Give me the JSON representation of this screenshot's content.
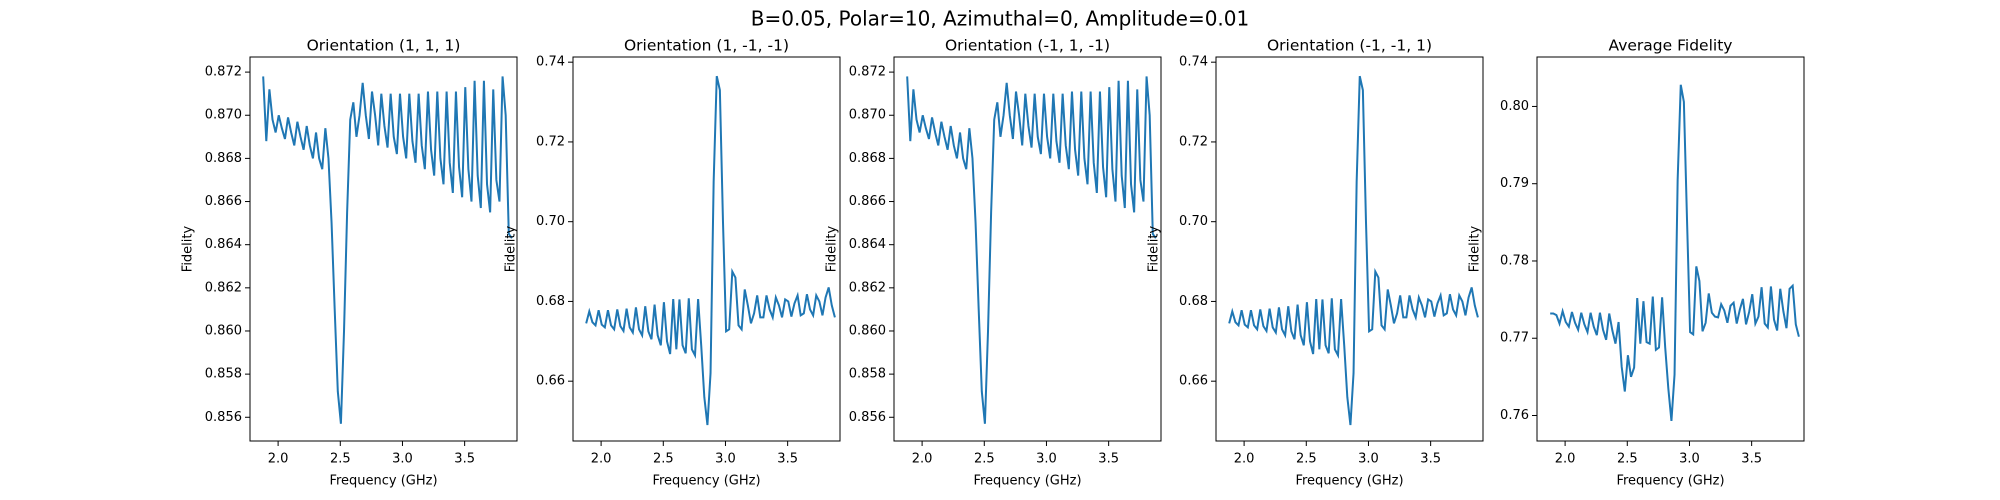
{
  "title": "B=0.05, Polar=10, Azimuthal=0, Amplitude=0.01",
  "chart_data": [
    {
      "type": "line",
      "title": "Orientation (1, 1, 1)",
      "x_label": "Frequency (GHz)",
      "y_label": "Fidelity",
      "x": [
        1.88,
        1.905,
        1.93,
        1.955,
        1.98,
        2.005,
        2.03,
        2.055,
        2.08,
        2.105,
        2.13,
        2.155,
        2.18,
        2.205,
        2.23,
        2.255,
        2.28,
        2.305,
        2.33,
        2.355,
        2.38,
        2.405,
        2.43,
        2.455,
        2.48,
        2.505,
        2.53,
        2.555,
        2.58,
        2.605,
        2.63,
        2.655,
        2.68,
        2.705,
        2.73,
        2.755,
        2.78,
        2.805,
        2.83,
        2.855,
        2.88,
        2.905,
        2.93,
        2.955,
        2.98,
        3.005,
        3.03,
        3.055,
        3.08,
        3.105,
        3.13,
        3.155,
        3.18,
        3.205,
        3.23,
        3.255,
        3.28,
        3.305,
        3.33,
        3.355,
        3.38,
        3.405,
        3.43,
        3.455,
        3.48,
        3.505,
        3.53,
        3.555,
        3.58,
        3.605,
        3.63,
        3.655,
        3.68,
        3.705,
        3.73,
        3.755,
        3.78,
        3.805,
        3.83,
        3.855,
        3.88
      ],
      "series": [
        {
          "color": "#1f77b4",
          "values": [
            0.8718,
            0.8688,
            0.8712,
            0.8698,
            0.8692,
            0.87,
            0.8694,
            0.8689,
            0.8699,
            0.8692,
            0.8686,
            0.8697,
            0.869,
            0.8684,
            0.8695,
            0.8686,
            0.868,
            0.8692,
            0.868,
            0.8675,
            0.8694,
            0.868,
            0.865,
            0.861,
            0.8572,
            0.8557,
            0.86,
            0.8655,
            0.8698,
            0.8706,
            0.869,
            0.87,
            0.8715,
            0.87,
            0.8689,
            0.8711,
            0.87,
            0.8686,
            0.871,
            0.8695,
            0.8685,
            0.871,
            0.869,
            0.8682,
            0.871,
            0.869,
            0.868,
            0.871,
            0.8688,
            0.8678,
            0.871,
            0.8686,
            0.8675,
            0.8711,
            0.8684,
            0.8672,
            0.8711,
            0.868,
            0.8668,
            0.8711,
            0.8678,
            0.8664,
            0.8711,
            0.8676,
            0.8662,
            0.8713,
            0.8675,
            0.866,
            0.8716,
            0.8672,
            0.8657,
            0.8716,
            0.8668,
            0.8655,
            0.8712,
            0.867,
            0.866,
            0.8718,
            0.87,
            0.8645,
            0.8643
          ]
        }
      ],
      "xlim": [
        1.774,
        3.921
      ],
      "xticks": [
        {
          "value": 2.0,
          "label": "2.0"
        },
        2.5,
        {
          "value": 3.0,
          "label": "3.0"
        },
        3.5
      ],
      "ylim": [
        0.8549,
        0.8727
      ],
      "yticks": [
        0.856,
        0.858,
        {
          "value": 0.86,
          "label": "0.860"
        },
        0.862,
        0.864,
        0.866,
        0.868,
        {
          "value": 0.87,
          "label": "0.870"
        },
        0.872
      ]
    },
    {
      "type": "line",
      "title": "Orientation (1, -1, -1)",
      "x_label": "Frequency (GHz)",
      "y_label": "Fidelity",
      "x": [
        1.88,
        1.905,
        1.93,
        1.955,
        1.98,
        2.005,
        2.03,
        2.055,
        2.08,
        2.105,
        2.13,
        2.155,
        2.18,
        2.205,
        2.23,
        2.255,
        2.28,
        2.305,
        2.33,
        2.355,
        2.38,
        2.405,
        2.43,
        2.455,
        2.48,
        2.505,
        2.53,
        2.555,
        2.58,
        2.605,
        2.63,
        2.655,
        2.68,
        2.705,
        2.73,
        2.755,
        2.78,
        2.805,
        2.83,
        2.855,
        2.88,
        2.905,
        2.93,
        2.955,
        2.98,
        3.005,
        3.03,
        3.055,
        3.08,
        3.105,
        3.13,
        3.155,
        3.18,
        3.205,
        3.23,
        3.255,
        3.28,
        3.305,
        3.33,
        3.355,
        3.38,
        3.405,
        3.43,
        3.455,
        3.48,
        3.505,
        3.53,
        3.555,
        3.58,
        3.605,
        3.63,
        3.655,
        3.68,
        3.705,
        3.73,
        3.755,
        3.78,
        3.805,
        3.83,
        3.855,
        3.88
      ],
      "series": [
        {
          "color": "#1f77b4",
          "values": [
            0.6745,
            0.6775,
            0.6748,
            0.674,
            0.6778,
            0.6742,
            0.6735,
            0.6778,
            0.674,
            0.673,
            0.678,
            0.6738,
            0.6726,
            0.6782,
            0.6735,
            0.6722,
            0.6785,
            0.673,
            0.6715,
            0.6788,
            0.6725,
            0.6705,
            0.6792,
            0.6715,
            0.669,
            0.6798,
            0.67,
            0.6668,
            0.6806,
            0.668,
            0.6805,
            0.669,
            0.667,
            0.6808,
            0.668,
            0.6665,
            0.6806,
            0.669,
            0.656,
            0.649,
            0.662,
            0.71,
            0.7365,
            0.733,
            0.7,
            0.6725,
            0.673,
            0.6875,
            0.686,
            0.674,
            0.673,
            0.683,
            0.679,
            0.6745,
            0.677,
            0.6815,
            0.676,
            0.676,
            0.6815,
            0.678,
            0.676,
            0.681,
            0.679,
            0.676,
            0.6805,
            0.68,
            0.6762,
            0.6795,
            0.6815,
            0.6765,
            0.677,
            0.6818,
            0.678,
            0.6765,
            0.6815,
            0.68,
            0.6765,
            0.681,
            0.6835,
            0.679,
            0.676
          ]
        }
      ],
      "xlim": [
        1.774,
        3.921
      ],
      "xticks": [
        {
          "value": 2.0,
          "label": "2.0"
        },
        2.5,
        {
          "value": 3.0,
          "label": "3.0"
        },
        3.5
      ],
      "ylim": [
        0.645,
        0.7413
      ],
      "yticks": [
        0.66,
        0.68,
        {
          "value": 0.7,
          "label": "0.70"
        },
        0.72,
        0.74
      ]
    },
    {
      "type": "line",
      "title": "Orientation (-1, 1, -1)",
      "x_label": "Frequency (GHz)",
      "y_label": "Fidelity",
      "x": [
        1.88,
        1.905,
        1.93,
        1.955,
        1.98,
        2.005,
        2.03,
        2.055,
        2.08,
        2.105,
        2.13,
        2.155,
        2.18,
        2.205,
        2.23,
        2.255,
        2.28,
        2.305,
        2.33,
        2.355,
        2.38,
        2.405,
        2.43,
        2.455,
        2.48,
        2.505,
        2.53,
        2.555,
        2.58,
        2.605,
        2.63,
        2.655,
        2.68,
        2.705,
        2.73,
        2.755,
        2.78,
        2.805,
        2.83,
        2.855,
        2.88,
        2.905,
        2.93,
        2.955,
        2.98,
        3.005,
        3.03,
        3.055,
        3.08,
        3.105,
        3.13,
        3.155,
        3.18,
        3.205,
        3.23,
        3.255,
        3.28,
        3.305,
        3.33,
        3.355,
        3.38,
        3.405,
        3.43,
        3.455,
        3.48,
        3.505,
        3.53,
        3.555,
        3.58,
        3.605,
        3.63,
        3.655,
        3.68,
        3.705,
        3.73,
        3.755,
        3.78,
        3.805,
        3.83,
        3.855,
        3.88
      ],
      "series": [
        {
          "color": "#1f77b4",
          "values": [
            0.8718,
            0.8688,
            0.8712,
            0.8698,
            0.8692,
            0.87,
            0.8694,
            0.8689,
            0.8699,
            0.8692,
            0.8686,
            0.8697,
            0.869,
            0.8684,
            0.8695,
            0.8686,
            0.868,
            0.8692,
            0.868,
            0.8675,
            0.8694,
            0.868,
            0.865,
            0.861,
            0.8572,
            0.8557,
            0.86,
            0.8655,
            0.8698,
            0.8706,
            0.869,
            0.87,
            0.8715,
            0.87,
            0.8689,
            0.8711,
            0.87,
            0.8686,
            0.871,
            0.8695,
            0.8685,
            0.871,
            0.869,
            0.8682,
            0.871,
            0.869,
            0.868,
            0.871,
            0.8688,
            0.8678,
            0.871,
            0.8686,
            0.8675,
            0.8711,
            0.8684,
            0.8672,
            0.8711,
            0.868,
            0.8668,
            0.8711,
            0.8678,
            0.8664,
            0.8711,
            0.8676,
            0.8662,
            0.8713,
            0.8675,
            0.866,
            0.8716,
            0.8672,
            0.8657,
            0.8716,
            0.8668,
            0.8655,
            0.8712,
            0.867,
            0.866,
            0.8718,
            0.87,
            0.8645,
            0.8643
          ]
        }
      ],
      "xlim": [
        1.774,
        3.921
      ],
      "xticks": [
        {
          "value": 2.0,
          "label": "2.0"
        },
        2.5,
        {
          "value": 3.0,
          "label": "3.0"
        },
        3.5
      ],
      "ylim": [
        0.8549,
        0.8727
      ],
      "yticks": [
        0.856,
        0.858,
        {
          "value": 0.86,
          "label": "0.860"
        },
        0.862,
        0.864,
        0.866,
        0.868,
        {
          "value": 0.87,
          "label": "0.870"
        },
        0.872
      ]
    },
    {
      "type": "line",
      "title": "Orientation (-1, -1, 1)",
      "x_label": "Frequency (GHz)",
      "y_label": "Fidelity",
      "x": [
        1.88,
        1.905,
        1.93,
        1.955,
        1.98,
        2.005,
        2.03,
        2.055,
        2.08,
        2.105,
        2.13,
        2.155,
        2.18,
        2.205,
        2.23,
        2.255,
        2.28,
        2.305,
        2.33,
        2.355,
        2.38,
        2.405,
        2.43,
        2.455,
        2.48,
        2.505,
        2.53,
        2.555,
        2.58,
        2.605,
        2.63,
        2.655,
        2.68,
        2.705,
        2.73,
        2.755,
        2.78,
        2.805,
        2.83,
        2.855,
        2.88,
        2.905,
        2.93,
        2.955,
        2.98,
        3.005,
        3.03,
        3.055,
        3.08,
        3.105,
        3.13,
        3.155,
        3.18,
        3.205,
        3.23,
        3.255,
        3.28,
        3.305,
        3.33,
        3.355,
        3.38,
        3.405,
        3.43,
        3.455,
        3.48,
        3.505,
        3.53,
        3.555,
        3.58,
        3.605,
        3.63,
        3.655,
        3.68,
        3.705,
        3.73,
        3.755,
        3.78,
        3.805,
        3.83,
        3.855,
        3.88
      ],
      "series": [
        {
          "color": "#1f77b4",
          "values": [
            0.6745,
            0.6775,
            0.6748,
            0.674,
            0.6778,
            0.6742,
            0.6735,
            0.6778,
            0.674,
            0.673,
            0.678,
            0.6738,
            0.6726,
            0.6782,
            0.6735,
            0.6722,
            0.6785,
            0.673,
            0.6715,
            0.6788,
            0.6725,
            0.6705,
            0.6792,
            0.6715,
            0.669,
            0.6798,
            0.67,
            0.6668,
            0.6806,
            0.668,
            0.6805,
            0.669,
            0.667,
            0.6808,
            0.668,
            0.6665,
            0.6806,
            0.669,
            0.656,
            0.649,
            0.662,
            0.71,
            0.7365,
            0.733,
            0.7,
            0.6725,
            0.673,
            0.6875,
            0.686,
            0.674,
            0.673,
            0.683,
            0.679,
            0.6745,
            0.677,
            0.6815,
            0.676,
            0.676,
            0.6815,
            0.678,
            0.676,
            0.681,
            0.679,
            0.676,
            0.6805,
            0.68,
            0.6762,
            0.6795,
            0.6815,
            0.6765,
            0.677,
            0.6818,
            0.678,
            0.6765,
            0.6815,
            0.68,
            0.6765,
            0.681,
            0.6835,
            0.679,
            0.676
          ]
        }
      ],
      "xlim": [
        1.774,
        3.921
      ],
      "xticks": [
        {
          "value": 2.0,
          "label": "2.0"
        },
        2.5,
        {
          "value": 3.0,
          "label": "3.0"
        },
        3.5
      ],
      "ylim": [
        0.645,
        0.7413
      ],
      "yticks": [
        0.66,
        0.68,
        {
          "value": 0.7,
          "label": "0.70"
        },
        0.72,
        0.74
      ]
    },
    {
      "type": "line",
      "title": "Average Fidelity",
      "x_label": "Frequency (GHz)",
      "y_label": "Fidelity",
      "x": [
        1.88,
        1.905,
        1.93,
        1.955,
        1.98,
        2.005,
        2.03,
        2.055,
        2.08,
        2.105,
        2.13,
        2.155,
        2.18,
        2.205,
        2.23,
        2.255,
        2.28,
        2.305,
        2.33,
        2.355,
        2.38,
        2.405,
        2.43,
        2.455,
        2.48,
        2.505,
        2.53,
        2.555,
        2.58,
        2.605,
        2.63,
        2.655,
        2.68,
        2.705,
        2.73,
        2.755,
        2.78,
        2.805,
        2.83,
        2.855,
        2.88,
        2.905,
        2.93,
        2.955,
        2.98,
        3.005,
        3.03,
        3.055,
        3.08,
        3.105,
        3.13,
        3.155,
        3.18,
        3.205,
        3.23,
        3.255,
        3.28,
        3.305,
        3.33,
        3.355,
        3.38,
        3.405,
        3.43,
        3.455,
        3.48,
        3.505,
        3.53,
        3.555,
        3.58,
        3.605,
        3.63,
        3.655,
        3.68,
        3.705,
        3.73,
        3.755,
        3.78,
        3.805,
        3.83,
        3.855,
        3.88
      ],
      "series": [
        {
          "color": "#1f77b4",
          "values": [
            0.7732,
            0.7732,
            0.773,
            0.7719,
            0.7735,
            0.7721,
            0.7715,
            0.7734,
            0.772,
            0.7711,
            0.7733,
            0.7718,
            0.7708,
            0.7733,
            0.7715,
            0.7704,
            0.7733,
            0.7711,
            0.7698,
            0.7732,
            0.771,
            0.7693,
            0.7721,
            0.7663,
            0.7631,
            0.7678,
            0.765,
            0.7662,
            0.7752,
            0.7693,
            0.7748,
            0.7695,
            0.7693,
            0.7754,
            0.7685,
            0.7688,
            0.7753,
            0.7688,
            0.7635,
            0.7593,
            0.7653,
            0.7905,
            0.8028,
            0.8006,
            0.7855,
            0.7708,
            0.7705,
            0.7793,
            0.7774,
            0.7709,
            0.772,
            0.7758,
            0.7733,
            0.7728,
            0.7727,
            0.7744,
            0.7736,
            0.772,
            0.7742,
            0.7746,
            0.7719,
            0.7737,
            0.7751,
            0.7718,
            0.7734,
            0.7757,
            0.7719,
            0.7728,
            0.7766,
            0.7719,
            0.7714,
            0.7767,
            0.7724,
            0.771,
            0.7764,
            0.7735,
            0.7713,
            0.7764,
            0.7768,
            0.7718,
            0.7702
          ]
        }
      ],
      "xlim": [
        1.774,
        3.921
      ],
      "xticks": [
        {
          "value": 2.0,
          "label": "2.0"
        },
        2.5,
        {
          "value": 3.0,
          "label": "3.0"
        },
        3.5
      ],
      "ylim": [
        0.7567,
        0.8064
      ],
      "yticks": [
        0.76,
        0.77,
        0.78,
        0.79,
        {
          "value": 0.8,
          "label": "0.80"
        }
      ]
    }
  ]
}
